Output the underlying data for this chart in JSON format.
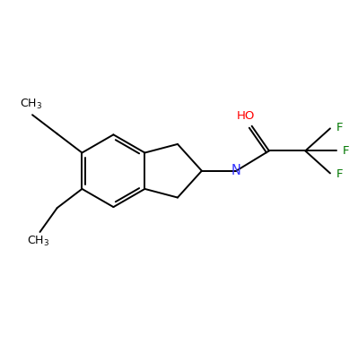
{
  "background_color": "#ffffff",
  "bond_color": "#000000",
  "atom_colors": {
    "N": "#3333ff",
    "O": "#ff0000",
    "F": "#007700",
    "C": "#000000"
  },
  "font_size": 9.5,
  "figsize": [
    3.99,
    3.93
  ],
  "dpi": 100
}
